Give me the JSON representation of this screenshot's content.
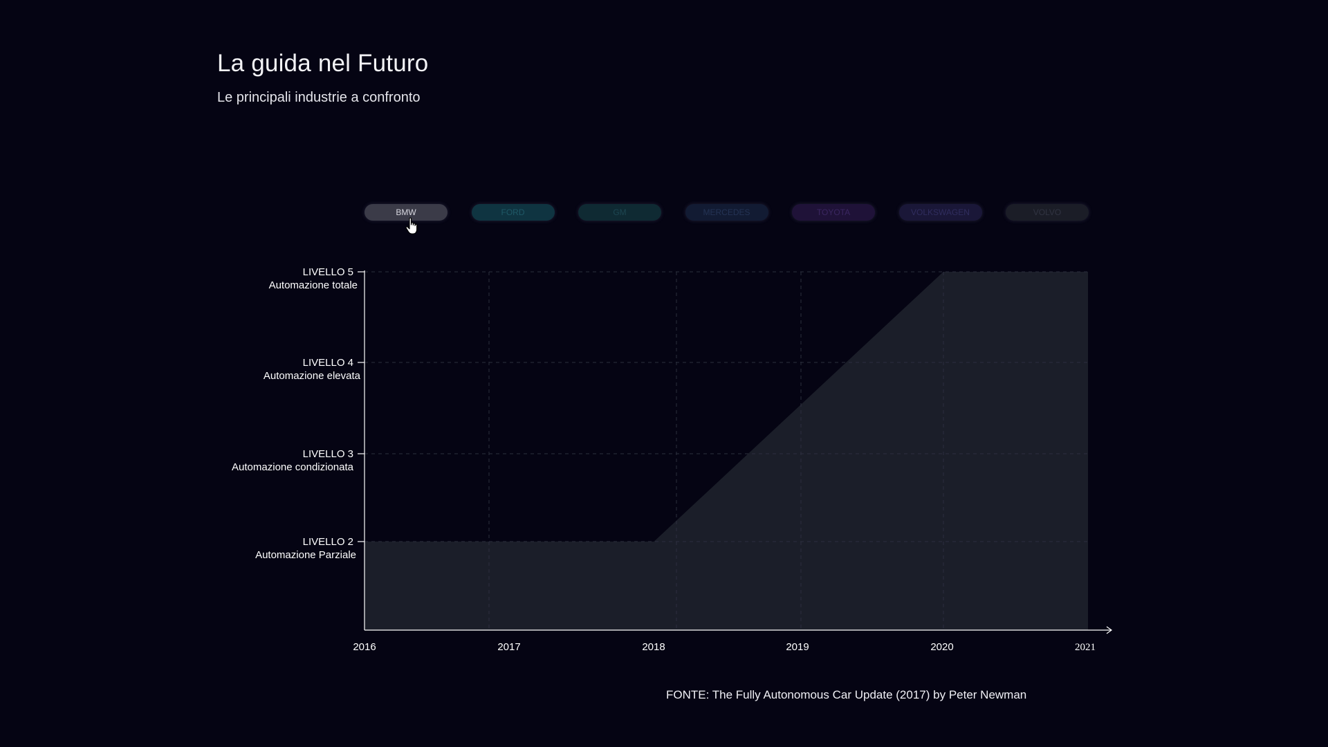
{
  "title": "La guida nel Futuro",
  "subtitle": "Le principali industrie a confronto",
  "brands": [
    {
      "label": "BMW",
      "bg": "#3b3b48",
      "fg": "#d7d7df",
      "active": true
    },
    {
      "label": "FORD",
      "bg": "#0f3441",
      "fg": "#1f5866",
      "active": false
    },
    {
      "label": "GM",
      "bg": "#0f2a33",
      "fg": "#1d4651",
      "active": false
    },
    {
      "label": "MERCEDES",
      "bg": "#121b33",
      "fg": "#243354",
      "active": false
    },
    {
      "label": "TOYOTA",
      "bg": "#1f1238",
      "fg": "#3a2660",
      "active": false
    },
    {
      "label": "VOLKSWAGEN",
      "bg": "#1a1738",
      "fg": "#302d5e",
      "active": false
    },
    {
      "label": "VOLVO",
      "bg": "#1b1d27",
      "fg": "#313442",
      "active": false
    }
  ],
  "colors": {
    "background": "#050413",
    "area_fill": "#1b1e29",
    "axis": "#ffffff",
    "grid": "#2c2f3e"
  },
  "chart_data": {
    "type": "area",
    "series": [
      {
        "name": "BMW",
        "x": [
          2016,
          2018,
          2020,
          2021
        ],
        "y": [
          2,
          2,
          5,
          5
        ]
      }
    ],
    "xlim": [
      2016,
      2021
    ],
    "ylim": [
      1,
      5
    ],
    "x_ticks": [
      "2016",
      "2017",
      "2018",
      "2019",
      "2020",
      "2021"
    ],
    "y_ticks": [
      {
        "value": 5,
        "level": "LIVELLO 5",
        "desc": "Automazione totale"
      },
      {
        "value": 4,
        "level": "LIVELLO 4",
        "desc": "Automazione elevata"
      },
      {
        "value": 3,
        "level": "LIVELLO 3",
        "desc": "Automazione condizionata"
      },
      {
        "value": 2,
        "level": "LIVELLO 2",
        "desc": "Automazione Parziale"
      }
    ],
    "grid": true,
    "source": "FONTE: The Fully Autonomous Car Update (2017) by Peter Newman"
  }
}
